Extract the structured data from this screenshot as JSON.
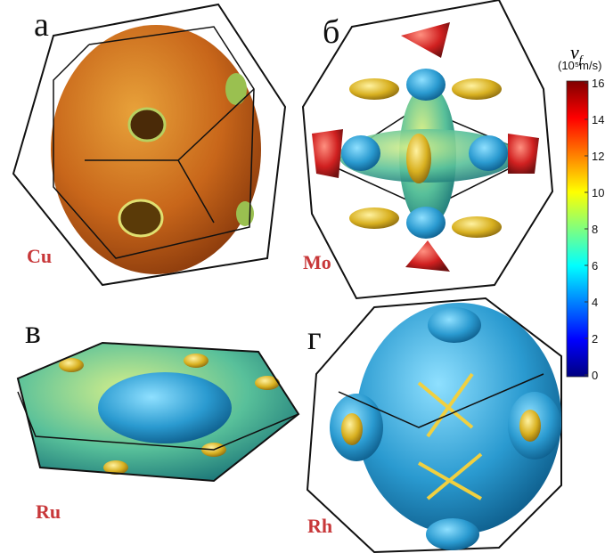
{
  "panels": [
    {
      "label": "а",
      "element": "Cu"
    },
    {
      "label": "б",
      "element": "Mo"
    },
    {
      "label": "в",
      "element": "Ru"
    },
    {
      "label": "г",
      "element": "Rh"
    }
  ],
  "colorbar": {
    "symbol": "v",
    "subscript": "f",
    "unit": "(10⁵m/s)",
    "lim": [
      0,
      16
    ],
    "ticks": [
      0,
      2,
      4,
      6,
      8,
      10,
      12,
      14,
      16
    ]
  }
}
